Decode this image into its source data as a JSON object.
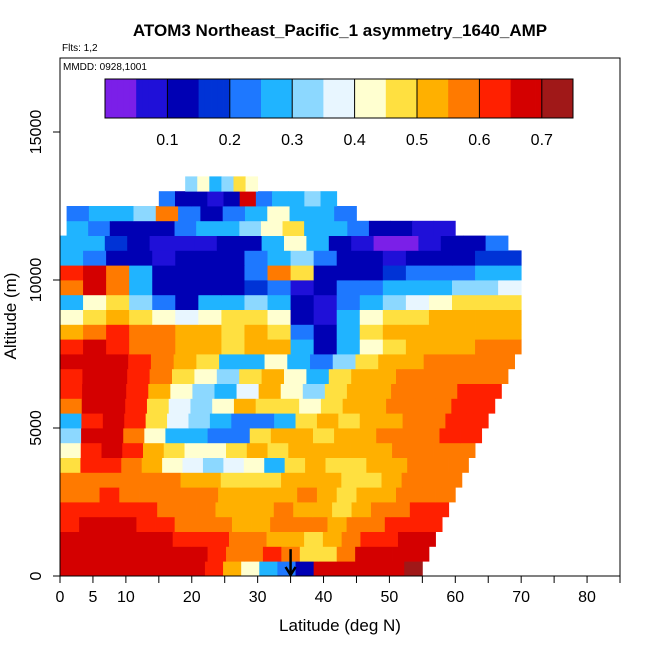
{
  "chart_data": {
    "type": "heatmap",
    "title": "ATOM3 Northeast_Pacific_1 asymmetry_1640_AMP",
    "flights_label": "Flts: 1,2",
    "dates_label": "MMDD: 0928,1001",
    "xlabel": "Latitude (deg N)",
    "ylabel": "Altitude (m)",
    "xlim": [
      0,
      85
    ],
    "ylim": [
      0,
      17500
    ],
    "x_ticks": [
      0,
      5,
      10,
      20,
      30,
      40,
      50,
      60,
      70,
      80
    ],
    "y_ticks": [
      0,
      5000,
      10000,
      15000
    ],
    "colorbar": {
      "range": [
        0.0,
        0.75
      ],
      "ticks": [
        0.1,
        0.2,
        0.3,
        0.4,
        0.5,
        0.6,
        0.7
      ],
      "colors": [
        "#7b1fe8",
        "#1f10d8",
        "#0000b4",
        "#0033d6",
        "#1e78ff",
        "#20b4ff",
        "#8cd8ff",
        "#e8f6ff",
        "#ffffd0",
        "#ffe040",
        "#ffb000",
        "#ff7a00",
        "#ff2000",
        "#d40000",
        "#a01818"
      ]
    },
    "marker": {
      "latitude": 35,
      "symbol": "down-arrow"
    },
    "rows": [
      {
        "alt": 0,
        "lat_max": 55,
        "values": [
          0.68,
          0.68,
          0.69,
          0.68,
          0.68,
          0.68,
          0.66,
          0.66,
          0.62,
          0.5,
          0.42,
          0.28,
          0.22,
          0.1,
          0.66,
          0.7,
          0.7,
          0.7,
          0.7,
          0.72
        ]
      },
      {
        "alt": 500,
        "lat_max": 56,
        "values": [
          0.66,
          0.67,
          0.68,
          0.68,
          0.67,
          0.67,
          0.66,
          0.65,
          0.63,
          0.6,
          0.58,
          0.62,
          0.58,
          0.48,
          0.45,
          0.6,
          0.66,
          0.68,
          0.68,
          0.68
        ]
      },
      {
        "alt": 1000,
        "lat_max": 57,
        "values": [
          0.66,
          0.66,
          0.67,
          0.66,
          0.66,
          0.65,
          0.64,
          0.64,
          0.62,
          0.58,
          0.55,
          0.52,
          0.5,
          0.48,
          0.52,
          0.58,
          0.62,
          0.64,
          0.66,
          0.66
        ]
      },
      {
        "alt": 1500,
        "lat_max": 58,
        "values": [
          0.64,
          0.65,
          0.66,
          0.65,
          0.64,
          0.62,
          0.6,
          0.58,
          0.55,
          0.5,
          0.52,
          0.55,
          0.58,
          0.55,
          0.5,
          0.55,
          0.6,
          0.62,
          0.64,
          0.64
        ]
      },
      {
        "alt": 2000,
        "lat_max": 59,
        "values": [
          0.62,
          0.62,
          0.64,
          0.63,
          0.62,
          0.6,
          0.58,
          0.56,
          0.54,
          0.52,
          0.5,
          0.55,
          0.52,
          0.5,
          0.48,
          0.5,
          0.56,
          0.6,
          0.62,
          0.62
        ]
      },
      {
        "alt": 2500,
        "lat_max": 60,
        "values": [
          0.58,
          0.6,
          0.62,
          0.6,
          0.6,
          0.58,
          0.56,
          0.55,
          0.52,
          0.5,
          0.5,
          0.52,
          0.55,
          0.5,
          0.48,
          0.5,
          0.54,
          0.58,
          0.6,
          0.6
        ]
      },
      {
        "alt": 3000,
        "lat_max": 61,
        "values": [
          0.55,
          0.58,
          0.6,
          0.6,
          0.58,
          0.55,
          0.52,
          0.5,
          0.48,
          0.46,
          0.45,
          0.5,
          0.52,
          0.5,
          0.48,
          0.48,
          0.52,
          0.56,
          0.58,
          0.58
        ]
      },
      {
        "alt": 3500,
        "lat_max": 62,
        "values": [
          0.45,
          0.62,
          0.64,
          0.6,
          0.5,
          0.42,
          0.38,
          0.35,
          0.38,
          0.42,
          0.3,
          0.45,
          0.5,
          0.48,
          0.46,
          0.5,
          0.54,
          0.56,
          0.58,
          0.58
        ]
      },
      {
        "alt": 4000,
        "lat_max": 63,
        "values": [
          0.4,
          0.62,
          0.66,
          0.62,
          0.52,
          0.45,
          0.4,
          0.42,
          0.46,
          0.5,
          0.48,
          0.5,
          0.52,
          0.5,
          0.52,
          0.54,
          0.56,
          0.58,
          0.6,
          0.6
        ]
      },
      {
        "alt": 4500,
        "lat_max": 64,
        "values": [
          0.35,
          0.65,
          0.66,
          0.6,
          0.4,
          0.3,
          0.25,
          0.22,
          0.2,
          0.45,
          0.5,
          0.5,
          0.48,
          0.5,
          0.52,
          0.55,
          0.58,
          0.6,
          0.62,
          0.62
        ]
      },
      {
        "alt": 5000,
        "lat_max": 65,
        "values": [
          0.3,
          0.64,
          0.66,
          0.62,
          0.48,
          0.38,
          0.35,
          0.3,
          0.22,
          0.2,
          0.3,
          0.45,
          0.5,
          0.48,
          0.5,
          0.54,
          0.58,
          0.6,
          0.62,
          0.62
        ]
      },
      {
        "alt": 5500,
        "lat_max": 66,
        "values": [
          0.6,
          0.66,
          0.66,
          0.62,
          0.45,
          0.38,
          0.35,
          0.42,
          0.5,
          0.48,
          0.45,
          0.4,
          0.48,
          0.5,
          0.52,
          0.55,
          0.58,
          0.6,
          0.62,
          0.64
        ]
      },
      {
        "alt": 6000,
        "lat_max": 67,
        "values": [
          0.62,
          0.66,
          0.66,
          0.62,
          0.5,
          0.4,
          0.35,
          0.3,
          0.38,
          0.5,
          0.42,
          0.35,
          0.45,
          0.5,
          0.52,
          0.55,
          0.58,
          0.6,
          0.62,
          0.62
        ]
      },
      {
        "alt": 6500,
        "lat_max": 68,
        "values": [
          0.64,
          0.66,
          0.66,
          0.62,
          0.55,
          0.48,
          0.4,
          0.35,
          0.45,
          0.52,
          0.4,
          0.3,
          0.48,
          0.52,
          0.54,
          0.56,
          0.58,
          0.58,
          0.6,
          0.6
        ]
      },
      {
        "alt": 7000,
        "lat_max": 69,
        "values": [
          0.66,
          0.68,
          0.66,
          0.62,
          0.56,
          0.5,
          0.45,
          0.3,
          0.25,
          0.42,
          0.3,
          0.2,
          0.35,
          0.45,
          0.5,
          0.52,
          0.55,
          0.56,
          0.58,
          0.58
        ]
      },
      {
        "alt": 7500,
        "lat_max": 70,
        "values": [
          0.64,
          0.66,
          0.64,
          0.6,
          0.55,
          0.52,
          0.5,
          0.48,
          0.5,
          0.52,
          0.3,
          0.15,
          0.3,
          0.42,
          0.48,
          0.5,
          0.52,
          0.54,
          0.56,
          0.56
        ]
      },
      {
        "alt": 8000,
        "lat_max": 70,
        "values": [
          0.5,
          0.6,
          0.62,
          0.58,
          0.55,
          0.52,
          0.5,
          0.48,
          0.5,
          0.45,
          0.2,
          0.1,
          0.3,
          0.45,
          0.5,
          0.52,
          0.52,
          0.52,
          0.54,
          0.54
        ]
      },
      {
        "alt": 8500,
        "lat_max": 70,
        "values": [
          0.4,
          0.45,
          0.5,
          0.45,
          0.4,
          0.38,
          0.42,
          0.45,
          0.48,
          0.4,
          0.15,
          0.08,
          0.3,
          0.42,
          0.45,
          0.48,
          0.5,
          0.5,
          0.5,
          0.52
        ]
      },
      {
        "alt": 9000,
        "lat_max": 70,
        "values": [
          0.3,
          0.4,
          0.45,
          0.35,
          0.2,
          0.15,
          0.25,
          0.3,
          0.35,
          0.25,
          0.1,
          0.05,
          0.2,
          0.3,
          0.35,
          0.38,
          0.42,
          0.45,
          0.48,
          0.48
        ]
      },
      {
        "alt": 9500,
        "lat_max": 70,
        "values": [
          0.55,
          0.65,
          0.6,
          0.3,
          0.15,
          0.1,
          0.12,
          0.15,
          0.18,
          0.2,
          0.05,
          0.1,
          0.2,
          0.22,
          0.25,
          0.28,
          0.3,
          0.32,
          0.34,
          0.36
        ]
      },
      {
        "alt": 10000,
        "lat_max": 70,
        "values": [
          0.62,
          0.66,
          0.6,
          0.25,
          0.15,
          0.12,
          0.1,
          0.15,
          0.2,
          0.55,
          0.45,
          0.1,
          0.12,
          0.15,
          0.18,
          0.2,
          0.22,
          0.24,
          0.26,
          0.28
        ]
      },
      {
        "alt": 10500,
        "lat_max": 70,
        "values": [
          0.25,
          0.2,
          0.15,
          0.1,
          0.08,
          0.1,
          0.12,
          0.15,
          0.2,
          0.3,
          0.35,
          0.2,
          0.15,
          0.1,
          0.08,
          0.1,
          0.12,
          0.14,
          0.16,
          0.18
        ]
      },
      {
        "alt": 11000,
        "lat_max": 68,
        "values": [
          0.3,
          0.25,
          0.18,
          0.12,
          0.05,
          0.05,
          0.08,
          0.1,
          0.15,
          0.3,
          0.4,
          0.25,
          0.1,
          0.05,
          0.02,
          0.02,
          0.05,
          0.1,
          0.15,
          0.2
        ]
      },
      {
        "alt": 11500,
        "lat_max": 60,
        "values": [
          0.25,
          0.2,
          0.15,
          0.12,
          0.15,
          0.2,
          0.25,
          0.3,
          0.35,
          0.4,
          0.45,
          0.3,
          0.25,
          0.2,
          0.15,
          0.1,
          0.05,
          0.05
        ]
      },
      {
        "alt": 12000,
        "lat_max": 45,
        "values": [
          0.2,
          0.3,
          0.25,
          0.35,
          0.6,
          0.2,
          0.15,
          0.2,
          0.3,
          0.4,
          0.3,
          0.25,
          0.2
        ]
      },
      {
        "alt": 12500,
        "lat_max": 42,
        "values": [
          0.22,
          0.15,
          0.1,
          0.08,
          0.12,
          0.65,
          0.2,
          0.25,
          0.3,
          0.35,
          0.3
        ]
      },
      {
        "alt": 13000,
        "lat_max": 30,
        "values": [
          0.35,
          0.4,
          0.3,
          0.35,
          0.45,
          0.4
        ]
      }
    ],
    "row_starts": {
      "12500": 15,
      "13000": 19,
      "12000": 1,
      "11500": 1
    }
  }
}
